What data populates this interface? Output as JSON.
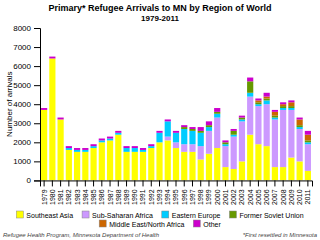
{
  "chart_data": {
    "type": "bar",
    "stacked": true,
    "title": "Primary* Refugee Arrivals to MN by Region of World",
    "subtitle": "1979-2011",
    "y_label": "Number of arrivals",
    "categories": [
      "1979",
      "1980",
      "1981",
      "1982",
      "1983",
      "1984",
      "1985",
      "1986",
      "1987",
      "1988",
      "1989",
      "1990",
      "1991",
      "1992",
      "1993",
      "1994",
      "1995",
      "1996",
      "1997",
      "1998",
      "1999",
      "2000",
      "2001",
      "2002",
      "2003",
      "2004",
      "2005",
      "2006",
      "2007",
      "2008",
      "2009",
      "2010",
      "2011"
    ],
    "series": [
      {
        "name": "Southeast Asia",
        "color": "#ffff00",
        "values": [
          3700,
          6400,
          3200,
          1600,
          1500,
          1500,
          1700,
          2000,
          2100,
          2400,
          1500,
          1500,
          1500,
          1700,
          2000,
          2100,
          1700,
          1500,
          1500,
          1100,
          1400,
          1700,
          700,
          600,
          1000,
          2400,
          1900,
          1800,
          700,
          700,
          1200,
          1000,
          500
        ]
      },
      {
        "name": "Sub-Saharan Africa",
        "color": "#cc99ff",
        "values": [
          0,
          0,
          0,
          0,
          0,
          0,
          0,
          0,
          0,
          0,
          0,
          0,
          0,
          0,
          0,
          200,
          300,
          400,
          400,
          700,
          1200,
          1600,
          1100,
          1700,
          2100,
          2000,
          2000,
          2200,
          2500,
          3000,
          2500,
          1700,
          1400
        ]
      },
      {
        "name": "Eastern Europe",
        "color": "#00ccff",
        "values": [
          0,
          0,
          0,
          100,
          100,
          100,
          100,
          100,
          100,
          100,
          200,
          200,
          100,
          100,
          500,
          800,
          500,
          800,
          700,
          700,
          200,
          200,
          100,
          100,
          100,
          200,
          100,
          200,
          100,
          100,
          100,
          100,
          100
        ]
      },
      {
        "name": "Former Soviet Union",
        "color": "#669900",
        "values": [
          0,
          0,
          0,
          0,
          0,
          0,
          0,
          0,
          0,
          0,
          0,
          0,
          0,
          0,
          0,
          0,
          0,
          100,
          100,
          100,
          100,
          100,
          100,
          200,
          100,
          600,
          100,
          100,
          100,
          100,
          100,
          100,
          100
        ]
      },
      {
        "name": "Middle East/North Africa",
        "color": "#cc6600",
        "values": [
          0,
          0,
          0,
          0,
          0,
          0,
          0,
          0,
          0,
          0,
          0,
          0,
          0,
          0,
          0,
          0,
          0,
          0,
          0,
          0,
          0,
          0,
          0,
          0,
          0,
          0,
          100,
          100,
          200,
          100,
          200,
          300,
          300
        ]
      },
      {
        "name": "Other",
        "color": "#cc00cc",
        "values": [
          100,
          100,
          100,
          100,
          100,
          100,
          100,
          100,
          100,
          100,
          100,
          100,
          100,
          100,
          100,
          100,
          100,
          100,
          100,
          200,
          200,
          200,
          100,
          100,
          100,
          200,
          100,
          200,
          100,
          100,
          100,
          100,
          200
        ]
      }
    ],
    "ylim": [
      0,
      8000
    ],
    "yticks": [
      0,
      1000,
      2000,
      3000,
      4000,
      5000,
      6000,
      7000,
      8000
    ],
    "legend": "bottom",
    "annotations": [
      "Refugee Health Program, Minnesota Department of Health",
      "*First resettled in Minnesota"
    ]
  }
}
